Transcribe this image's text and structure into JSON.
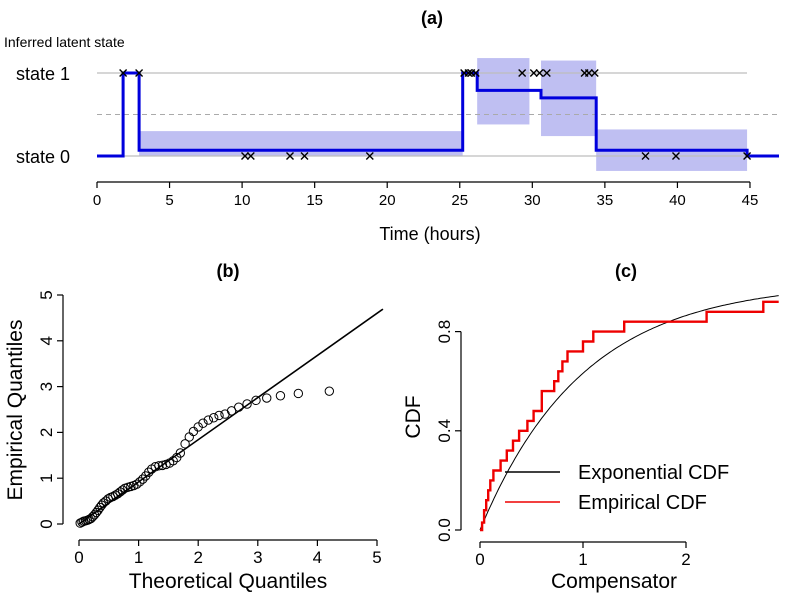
{
  "chart_data": [
    {
      "panel": "a",
      "type": "line",
      "title": "(a)",
      "subtitle": "Inferred latent state",
      "xlabel": "Time (hours)",
      "xlim": [
        0,
        47
      ],
      "xticks": [
        0,
        5,
        10,
        15,
        20,
        25,
        30,
        35,
        40,
        45
      ],
      "ylim": [
        0,
        1
      ],
      "ytick_labels": [
        "state 0",
        "state 1"
      ],
      "colors": {
        "line": "#0000dd",
        "band": "#b4b4f0",
        "grid": "#bdbdbd",
        "threshold": "#aaaaaa"
      },
      "threshold": 0.5,
      "state_path": [
        [
          0,
          0
        ],
        [
          1.8,
          0
        ],
        [
          1.8,
          1
        ],
        [
          2.9,
          1
        ],
        [
          2.9,
          0.07
        ],
        [
          25.2,
          0.07
        ],
        [
          25.2,
          1
        ],
        [
          26.2,
          1
        ],
        [
          26.2,
          0.79
        ],
        [
          30.6,
          0.79
        ],
        [
          30.6,
          0.7
        ],
        [
          34.4,
          0.7
        ],
        [
          34.4,
          0.07
        ],
        [
          44.8,
          0.07
        ],
        [
          44.8,
          0
        ],
        [
          47,
          0
        ]
      ],
      "bands": [
        {
          "x0": 2.9,
          "x1": 25.2,
          "y0": 0.0,
          "y1": 0.3
        },
        {
          "x0": 26.2,
          "x1": 29.8,
          "y0": 0.38,
          "y1": 1.18
        },
        {
          "x0": 30.6,
          "x1": 34.4,
          "y0": 0.24,
          "y1": 1.15
        },
        {
          "x0": 34.4,
          "x1": 44.8,
          "y0": -0.18,
          "y1": 0.32
        }
      ],
      "events": {
        "state1": [
          1.8,
          2.9,
          25.3,
          25.6,
          25.8,
          26.1,
          29.3,
          30.1,
          30.5,
          31.0,
          33.6,
          33.9,
          34.3
        ],
        "state0": [
          10.2,
          10.6,
          13.3,
          14.3,
          18.8,
          37.8,
          39.9,
          44.8
        ]
      }
    },
    {
      "panel": "b",
      "type": "scatter",
      "title": "(b)",
      "xlabel": "Theoretical Quantiles",
      "ylabel": "Empirical Quantiles",
      "xlim": [
        0,
        5
      ],
      "ylim": [
        0,
        5
      ],
      "xticks": [
        0,
        1,
        2,
        3,
        4,
        5
      ],
      "yticks": [
        0,
        1,
        2,
        3,
        4,
        5
      ],
      "reference_line": {
        "slope": 0.92,
        "intercept": 0
      },
      "points": [
        [
          0.02,
          0.02
        ],
        [
          0.05,
          0.04
        ],
        [
          0.08,
          0.06
        ],
        [
          0.11,
          0.07
        ],
        [
          0.14,
          0.08
        ],
        [
          0.17,
          0.1
        ],
        [
          0.2,
          0.12
        ],
        [
          0.23,
          0.16
        ],
        [
          0.26,
          0.2
        ],
        [
          0.29,
          0.25
        ],
        [
          0.32,
          0.3
        ],
        [
          0.35,
          0.36
        ],
        [
          0.38,
          0.41
        ],
        [
          0.41,
          0.46
        ],
        [
          0.45,
          0.5
        ],
        [
          0.49,
          0.55
        ],
        [
          0.53,
          0.58
        ],
        [
          0.57,
          0.6
        ],
        [
          0.61,
          0.63
        ],
        [
          0.65,
          0.66
        ],
        [
          0.69,
          0.7
        ],
        [
          0.73,
          0.74
        ],
        [
          0.77,
          0.78
        ],
        [
          0.82,
          0.8
        ],
        [
          0.87,
          0.82
        ],
        [
          0.92,
          0.84
        ],
        [
          0.97,
          0.87
        ],
        [
          1.02,
          0.92
        ],
        [
          1.07,
          0.98
        ],
        [
          1.12,
          1.05
        ],
        [
          1.17,
          1.13
        ],
        [
          1.22,
          1.2
        ],
        [
          1.28,
          1.25
        ],
        [
          1.34,
          1.27
        ],
        [
          1.4,
          1.28
        ],
        [
          1.46,
          1.3
        ],
        [
          1.52,
          1.33
        ],
        [
          1.58,
          1.38
        ],
        [
          1.64,
          1.45
        ],
        [
          1.7,
          1.55
        ],
        [
          1.78,
          1.75
        ],
        [
          1.85,
          1.9
        ],
        [
          1.92,
          2.02
        ],
        [
          2.0,
          2.12
        ],
        [
          2.08,
          2.2
        ],
        [
          2.17,
          2.27
        ],
        [
          2.26,
          2.32
        ],
        [
          2.35,
          2.37
        ],
        [
          2.45,
          2.4
        ],
        [
          2.56,
          2.47
        ],
        [
          2.68,
          2.55
        ],
        [
          2.82,
          2.62
        ],
        [
          2.97,
          2.7
        ],
        [
          3.15,
          2.75
        ],
        [
          3.38,
          2.8
        ],
        [
          3.68,
          2.85
        ],
        [
          4.2,
          2.9
        ]
      ]
    },
    {
      "panel": "c",
      "type": "line",
      "title": "(c)",
      "xlabel": "Compensator",
      "ylabel": "CDF",
      "xlim": [
        -0.1,
        2.9
      ],
      "ylim": [
        0,
        0.95
      ],
      "xticks": [
        0,
        1,
        2
      ],
      "yticks": [
        0.0,
        0.4,
        0.8
      ],
      "ytick_labels": [
        "0.0",
        "0.4",
        "0.8"
      ],
      "colors": {
        "Exponential CDF": "#000000",
        "Empirical CDF": "#ee0000"
      },
      "series": [
        {
          "name": "Exponential CDF",
          "function": "1 - exp(-x)"
        },
        {
          "name": "Empirical CDF",
          "values": [
            [
              0.0,
              0.0
            ],
            [
              0.02,
              0.0
            ],
            [
              0.02,
              0.03
            ],
            [
              0.04,
              0.03
            ],
            [
              0.04,
              0.08
            ],
            [
              0.06,
              0.08
            ],
            [
              0.06,
              0.12
            ],
            [
              0.08,
              0.12
            ],
            [
              0.08,
              0.16
            ],
            [
              0.1,
              0.16
            ],
            [
              0.1,
              0.2
            ],
            [
              0.13,
              0.2
            ],
            [
              0.13,
              0.24
            ],
            [
              0.2,
              0.24
            ],
            [
              0.2,
              0.28
            ],
            [
              0.26,
              0.28
            ],
            [
              0.26,
              0.32
            ],
            [
              0.32,
              0.32
            ],
            [
              0.32,
              0.36
            ],
            [
              0.38,
              0.36
            ],
            [
              0.38,
              0.4
            ],
            [
              0.46,
              0.4
            ],
            [
              0.46,
              0.44
            ],
            [
              0.52,
              0.44
            ],
            [
              0.52,
              0.48
            ],
            [
              0.6,
              0.48
            ],
            [
              0.6,
              0.56
            ],
            [
              0.72,
              0.56
            ],
            [
              0.72,
              0.6
            ],
            [
              0.76,
              0.6
            ],
            [
              0.76,
              0.64
            ],
            [
              0.8,
              0.64
            ],
            [
              0.8,
              0.68
            ],
            [
              0.85,
              0.68
            ],
            [
              0.85,
              0.72
            ],
            [
              1.0,
              0.72
            ],
            [
              1.0,
              0.76
            ],
            [
              1.1,
              0.76
            ],
            [
              1.1,
              0.8
            ],
            [
              1.4,
              0.8
            ],
            [
              1.4,
              0.84
            ],
            [
              2.2,
              0.84
            ],
            [
              2.2,
              0.88
            ],
            [
              2.75,
              0.88
            ],
            [
              2.75,
              0.92
            ],
            [
              2.9,
              0.92
            ]
          ]
        }
      ],
      "legend": {
        "placement": "bottom-right",
        "entries": [
          "Exponential CDF",
          "Empirical CDF"
        ]
      }
    }
  ]
}
